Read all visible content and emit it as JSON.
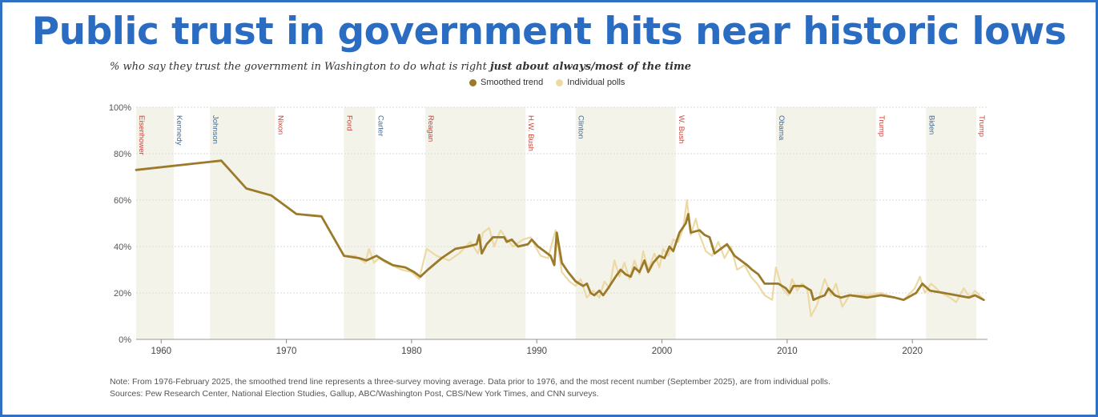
{
  "title": "Public trust in government hits near historic lows",
  "subtitle_prefix": "% who say they trust the government in Washington to do what is right ",
  "subtitle_bold": "just about always/most of the time",
  "note": "Note: From 1976-February 2025, the smoothed trend line represents a three-survey moving average. Data prior to 1976, and the most recent number (September 2025), are from individual polls.",
  "sources": "Sources: Pew Research Center, National Election Studies, Gallup, ABC/Washington Post, CBS/New York Times, and CNN surveys.",
  "colors": {
    "frame": "#2f6fc4",
    "title": "#2a6cc2",
    "smoothed": "#9b7a2a",
    "polls": "#ecd9a4",
    "shade": "#f3f3ea",
    "republican": "#c9433a",
    "democrat": "#3f6a96"
  },
  "chart_data": {
    "type": "line",
    "xlim": [
      1958,
      2026
    ],
    "ylim": [
      0,
      100
    ],
    "x_ticks": [
      1960,
      1970,
      1980,
      1990,
      2000,
      2010,
      2020
    ],
    "y_ticks": [
      0,
      20,
      40,
      60,
      80,
      100
    ],
    "y_tick_labels": [
      "0%",
      "20%",
      "40%",
      "60%",
      "80%",
      "100%"
    ],
    "grid": true,
    "legend": "top-center",
    "series": [
      {
        "name": "Smoothed trend",
        "style": "line-bold",
        "points": [
          [
            1958,
            73
          ],
          [
            1964.8,
            77
          ],
          [
            1966.8,
            65
          ],
          [
            1968.8,
            62
          ],
          [
            1970.8,
            54
          ],
          [
            1972.8,
            53
          ],
          [
            1974.6,
            36
          ],
          [
            1975.8,
            35
          ],
          [
            1976.4,
            34
          ],
          [
            1976.8,
            35
          ],
          [
            1977.2,
            36
          ],
          [
            1977.8,
            34
          ],
          [
            1978.5,
            32
          ],
          [
            1979.5,
            31
          ],
          [
            1980.2,
            29
          ],
          [
            1980.7,
            27
          ],
          [
            1981.3,
            30
          ],
          [
            1982.4,
            35
          ],
          [
            1983.5,
            39
          ],
          [
            1984.5,
            40
          ],
          [
            1985.2,
            41
          ],
          [
            1985.4,
            45
          ],
          [
            1985.6,
            37
          ],
          [
            1986.0,
            41
          ],
          [
            1986.5,
            44
          ],
          [
            1987.4,
            44
          ],
          [
            1987.6,
            42
          ],
          [
            1988.0,
            43
          ],
          [
            1988.5,
            40
          ],
          [
            1989.3,
            41
          ],
          [
            1989.6,
            43
          ],
          [
            1990.1,
            40
          ],
          [
            1990.6,
            38
          ],
          [
            1991.1,
            36
          ],
          [
            1991.4,
            32
          ],
          [
            1991.6,
            46
          ],
          [
            1992.0,
            33
          ],
          [
            1992.5,
            29
          ],
          [
            1993.1,
            25
          ],
          [
            1993.7,
            23
          ],
          [
            1994.0,
            24
          ],
          [
            1994.3,
            20
          ],
          [
            1994.6,
            19
          ],
          [
            1995.0,
            21
          ],
          [
            1995.3,
            19
          ],
          [
            1995.7,
            22
          ],
          [
            1996.3,
            27
          ],
          [
            1996.7,
            30
          ],
          [
            1997.1,
            28
          ],
          [
            1997.5,
            27
          ],
          [
            1997.8,
            31
          ],
          [
            1998.2,
            29
          ],
          [
            1998.6,
            34
          ],
          [
            1998.9,
            29
          ],
          [
            1999.3,
            33
          ],
          [
            1999.8,
            36
          ],
          [
            2000.2,
            35
          ],
          [
            2000.6,
            40
          ],
          [
            2000.9,
            38
          ],
          [
            2001.4,
            46
          ],
          [
            2001.9,
            50
          ],
          [
            2002.1,
            54
          ],
          [
            2002.3,
            46
          ],
          [
            2003.0,
            47
          ],
          [
            2003.4,
            45
          ],
          [
            2003.8,
            44
          ],
          [
            2004.2,
            37
          ],
          [
            2004.7,
            39
          ],
          [
            2005.2,
            41
          ],
          [
            2005.8,
            36
          ],
          [
            2006.3,
            34
          ],
          [
            2006.8,
            32
          ],
          [
            2007.2,
            30
          ],
          [
            2007.7,
            28
          ],
          [
            2008.2,
            24
          ],
          [
            2008.9,
            24
          ],
          [
            2009.3,
            24
          ],
          [
            2009.9,
            22
          ],
          [
            2010.2,
            20
          ],
          [
            2010.5,
            23
          ],
          [
            2010.9,
            23
          ],
          [
            2011.3,
            23
          ],
          [
            2011.6,
            22
          ],
          [
            2011.9,
            21
          ],
          [
            2012.1,
            17
          ],
          [
            2012.5,
            18
          ],
          [
            2013.0,
            19
          ],
          [
            2013.3,
            22
          ],
          [
            2013.8,
            19
          ],
          [
            2014.3,
            18
          ],
          [
            2015.0,
            19
          ],
          [
            2016.4,
            18
          ],
          [
            2017.5,
            19
          ],
          [
            2018.6,
            18
          ],
          [
            2019.3,
            17
          ],
          [
            2020.3,
            20
          ],
          [
            2020.8,
            24
          ],
          [
            2021.4,
            21
          ],
          [
            2022.5,
            20
          ],
          [
            2023.5,
            19
          ],
          [
            2024.5,
            18
          ],
          [
            2025.0,
            19
          ],
          [
            2025.7,
            17
          ]
        ]
      },
      {
        "name": "Individual polls",
        "style": "line-light",
        "points": [
          [
            1974.6,
            36
          ],
          [
            1975.5,
            36
          ],
          [
            1976.3,
            33
          ],
          [
            1976.6,
            39
          ],
          [
            1977.0,
            33
          ],
          [
            1977.4,
            35
          ],
          [
            1978.0,
            33
          ],
          [
            1979.2,
            30
          ],
          [
            1980.0,
            29
          ],
          [
            1980.6,
            26
          ],
          [
            1981.2,
            39
          ],
          [
            1982.0,
            36
          ],
          [
            1983.0,
            34
          ],
          [
            1983.8,
            37
          ],
          [
            1984.7,
            42
          ],
          [
            1985.3,
            37
          ],
          [
            1985.7,
            46
          ],
          [
            1986.2,
            48
          ],
          [
            1986.6,
            40
          ],
          [
            1987.1,
            47
          ],
          [
            1987.5,
            44
          ],
          [
            1988.1,
            40
          ],
          [
            1988.9,
            43
          ],
          [
            1989.5,
            44
          ],
          [
            1990.3,
            36
          ],
          [
            1990.9,
            35
          ],
          [
            1991.5,
            47
          ],
          [
            1992.0,
            29
          ],
          [
            1992.6,
            25
          ],
          [
            1993.1,
            23
          ],
          [
            1993.5,
            26
          ],
          [
            1994.0,
            18
          ],
          [
            1994.5,
            21
          ],
          [
            1995.0,
            18
          ],
          [
            1995.4,
            25
          ],
          [
            1995.8,
            22
          ],
          [
            1996.2,
            34
          ],
          [
            1996.6,
            27
          ],
          [
            1997.0,
            33
          ],
          [
            1997.4,
            26
          ],
          [
            1997.8,
            34
          ],
          [
            1998.2,
            28
          ],
          [
            1998.5,
            38
          ],
          [
            1998.9,
            30
          ],
          [
            1999.4,
            37
          ],
          [
            1999.8,
            31
          ],
          [
            2000.1,
            39
          ],
          [
            2000.5,
            36
          ],
          [
            2000.9,
            43
          ],
          [
            2001.3,
            42
          ],
          [
            2001.7,
            48
          ],
          [
            2002.0,
            60
          ],
          [
            2002.3,
            45
          ],
          [
            2002.7,
            52
          ],
          [
            2003.0,
            45
          ],
          [
            2003.5,
            38
          ],
          [
            2004.0,
            36
          ],
          [
            2004.5,
            42
          ],
          [
            2005.0,
            35
          ],
          [
            2005.5,
            40
          ],
          [
            2006.0,
            30
          ],
          [
            2006.6,
            32
          ],
          [
            2007.1,
            27
          ],
          [
            2007.6,
            24
          ],
          [
            2008.2,
            19
          ],
          [
            2008.8,
            17
          ],
          [
            2009.1,
            31
          ],
          [
            2009.6,
            22
          ],
          [
            2010.1,
            19
          ],
          [
            2010.4,
            26
          ],
          [
            2010.8,
            21
          ],
          [
            2011.2,
            24
          ],
          [
            2011.6,
            22
          ],
          [
            2011.9,
            10
          ],
          [
            2012.4,
            15
          ],
          [
            2013.0,
            26
          ],
          [
            2013.5,
            19
          ],
          [
            2013.9,
            24
          ],
          [
            2014.4,
            14
          ],
          [
            2015.0,
            19
          ],
          [
            2016.5,
            19
          ],
          [
            2017.5,
            20
          ],
          [
            2018.6,
            18
          ],
          [
            2019.3,
            17
          ],
          [
            2020.2,
            22
          ],
          [
            2020.6,
            27
          ],
          [
            2021.0,
            20
          ],
          [
            2021.5,
            24
          ],
          [
            2022.3,
            20
          ],
          [
            2023.0,
            18
          ],
          [
            2023.5,
            16
          ],
          [
            2024.1,
            22
          ],
          [
            2024.6,
            18
          ],
          [
            2025.0,
            21
          ],
          [
            2025.7,
            17
          ]
        ]
      }
    ],
    "presidencies": [
      {
        "name": "Eisenhower",
        "party": "R",
        "start": 1958,
        "end": 1961
      },
      {
        "name": "Kennedy",
        "party": "D",
        "start": 1961,
        "end": 1963.9
      },
      {
        "name": "Johnson",
        "party": "D",
        "start": 1963.9,
        "end": 1969.1
      },
      {
        "name": "Nixon",
        "party": "R",
        "start": 1969.1,
        "end": 1974.6
      },
      {
        "name": "Ford",
        "party": "R",
        "start": 1974.6,
        "end": 1977.1
      },
      {
        "name": "Carter",
        "party": "D",
        "start": 1977.1,
        "end": 1981.1
      },
      {
        "name": "Reagan",
        "party": "R",
        "start": 1981.1,
        "end": 1989.1
      },
      {
        "name": "H.W. Bush",
        "party": "R",
        "start": 1989.1,
        "end": 1993.1
      },
      {
        "name": "Clinton",
        "party": "D",
        "start": 1993.1,
        "end": 2001.1
      },
      {
        "name": "W. Bush",
        "party": "R",
        "start": 2001.1,
        "end": 2009.1
      },
      {
        "name": "Obama",
        "party": "D",
        "start": 2009.1,
        "end": 2017.1
      },
      {
        "name": "Trump",
        "party": "R",
        "start": 2017.1,
        "end": 2021.1
      },
      {
        "name": "Biden",
        "party": "D",
        "start": 2021.1,
        "end": 2025.1
      },
      {
        "name": "Trump",
        "party": "R",
        "start": 2025.1,
        "end": 2026
      }
    ]
  }
}
